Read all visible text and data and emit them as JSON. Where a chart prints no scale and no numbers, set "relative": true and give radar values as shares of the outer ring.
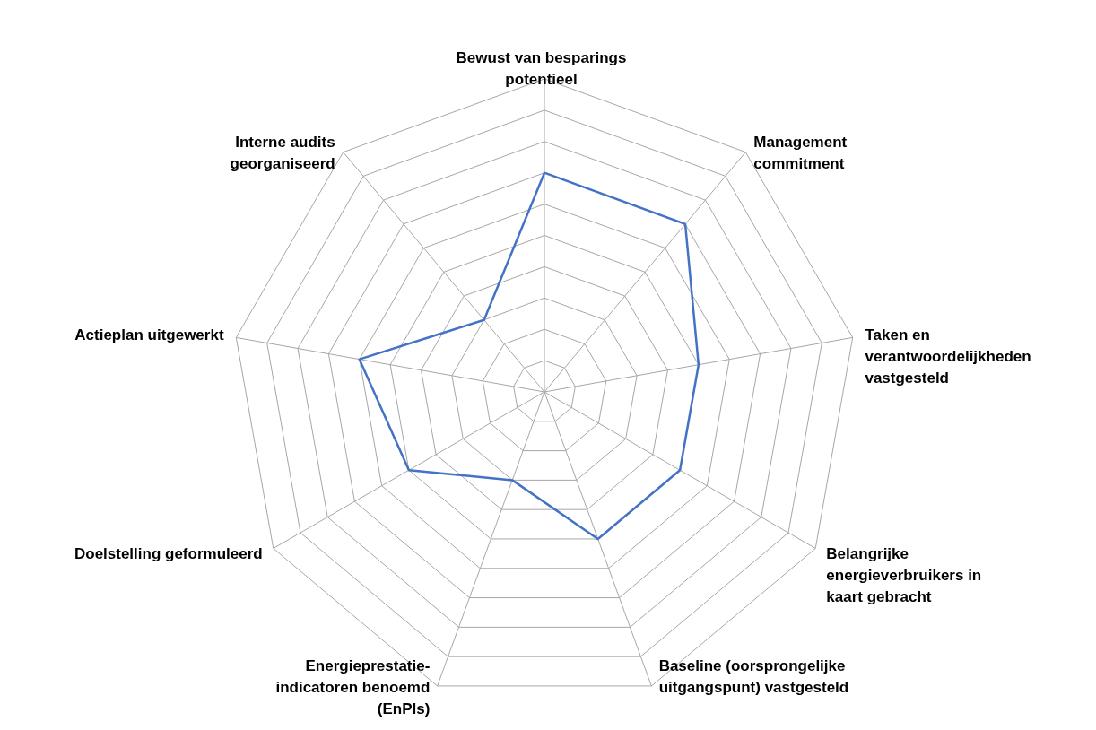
{
  "chart_data": {
    "type": "radar",
    "relative": true,
    "grid": true,
    "categories": [
      "Bewust van besparings\npotentieel",
      "Management\ncommitment",
      "Taken en\nverantwoordelijkheden\nvastgesteld",
      "Belangrijke\nenergieverbruikers in\nkaart gebracht",
      "Baseline (oorsprongelijke\nuitgangspunt) vastgesteld",
      "Energieprestatie-\nindicatoren benoemd\n(EnPIs)",
      "Doelstelling geformuleerd",
      "Actieplan uitgewerkt",
      "Interne audits\ngeorganiseerd"
    ],
    "series": [
      {
        "color": "#4472c4",
        "values": [
          0.7,
          0.7,
          0.5,
          0.5,
          0.5,
          0.3,
          0.5,
          0.6,
          0.3
        ]
      }
    ]
  }
}
